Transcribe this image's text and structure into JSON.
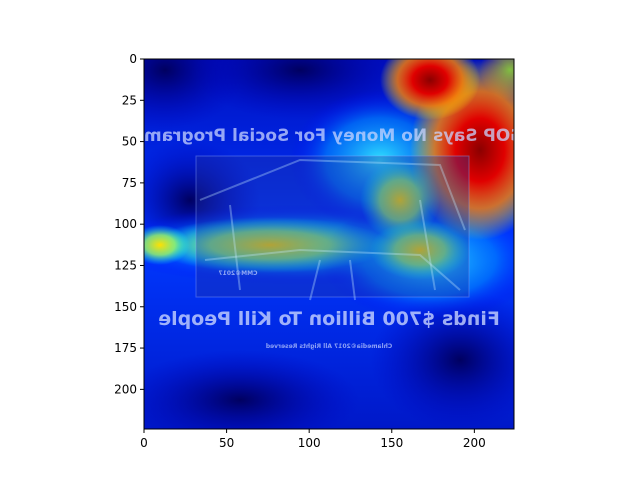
{
  "image": {
    "description_overlay": "heatmap attention overlay (jet colormap) on mirrored meme image",
    "caption_top": "GOP Says No Money For Social Programs",
    "caption_bottom": "Finds $700 Billion To Kill People",
    "small_credit": "Chlamedia©2017 All Rights Reserved",
    "inner_mark": "CMM©2017"
  },
  "axes": {
    "x_ticks": [
      "0",
      "50",
      "100",
      "150",
      "200"
    ],
    "y_ticks": [
      "0",
      "25",
      "50",
      "75",
      "100",
      "125",
      "150",
      "175",
      "200"
    ],
    "xlim": [
      0,
      224
    ],
    "ylim": [
      224,
      0
    ]
  },
  "colors": {
    "colormap": "jet",
    "deep_blue": "#00007f",
    "blue": "#0000ff",
    "cyan": "#00ffff",
    "yellow": "#ffff00",
    "red": "#ff0000",
    "dark_red": "#7f0000"
  }
}
